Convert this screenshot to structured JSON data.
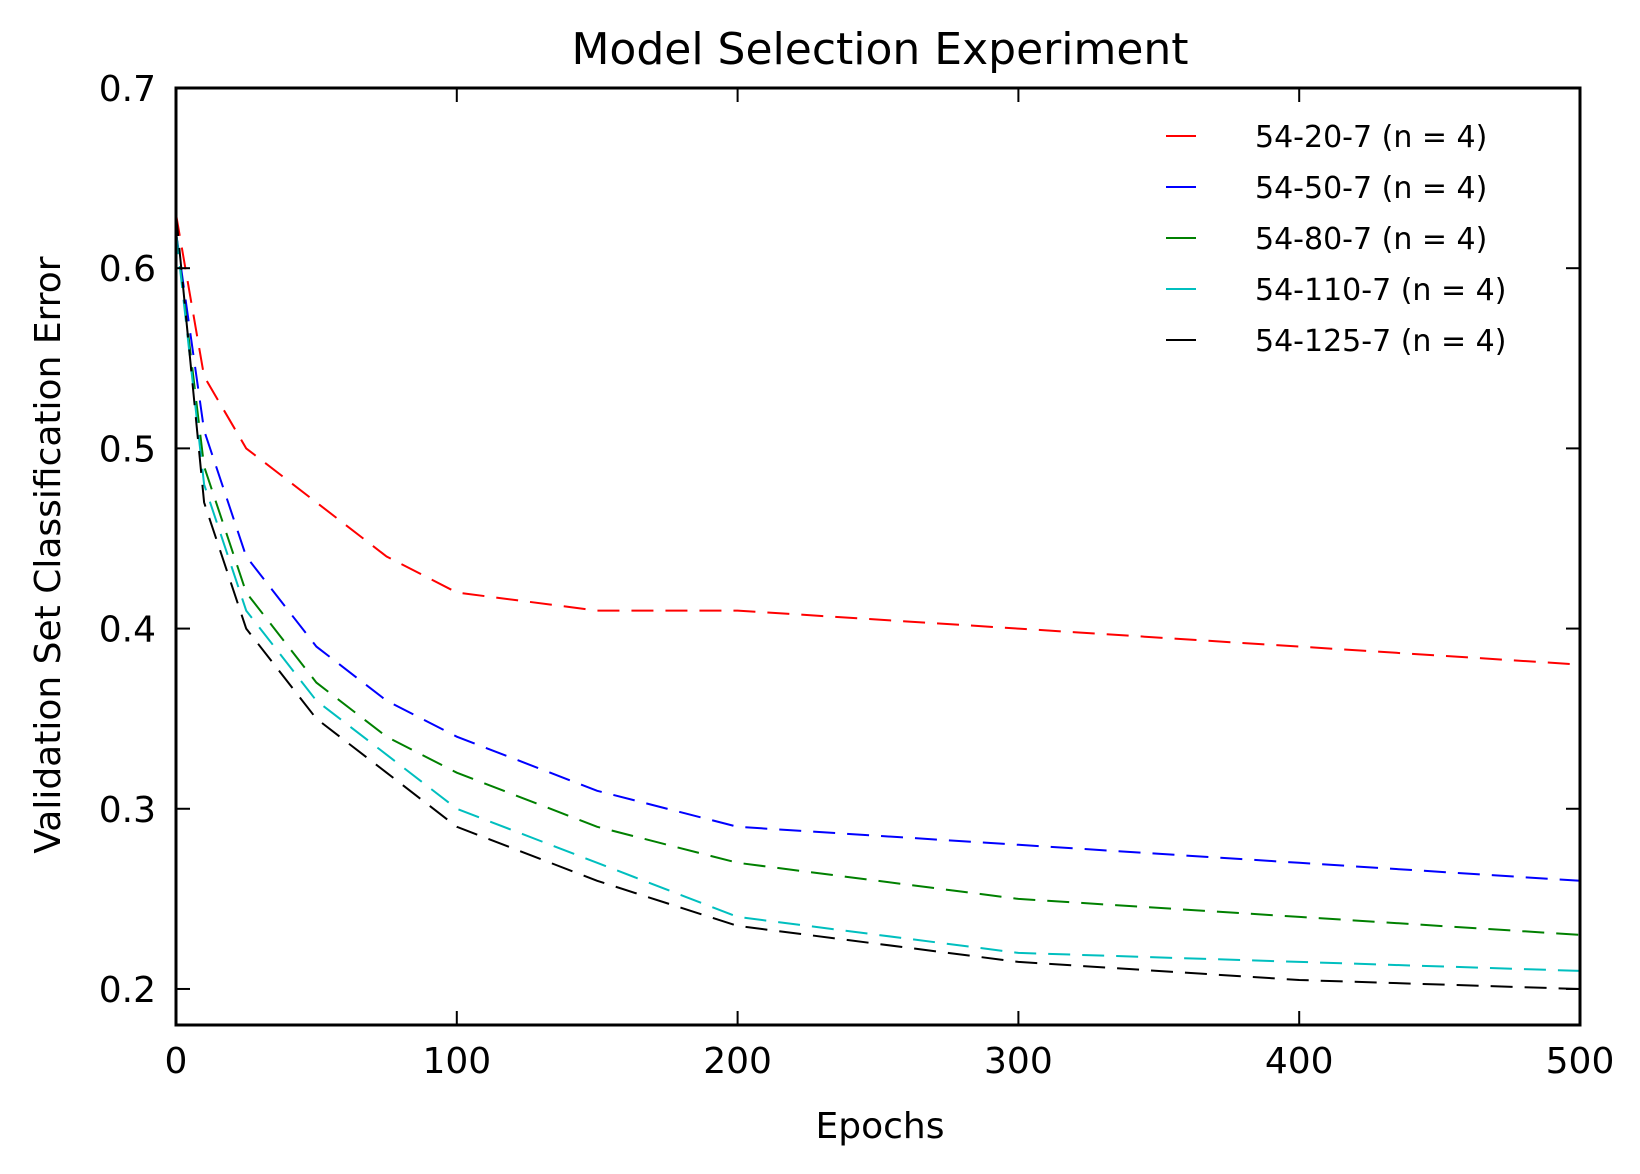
{
  "chart_data": {
    "type": "line",
    "title": "Model Selection Experiment",
    "xlabel": "Epochs",
    "ylabel": "Validation Set Classification Error",
    "xlim": [
      0,
      500
    ],
    "ylim": [
      0.18,
      0.7
    ],
    "xticks": [
      0,
      100,
      200,
      300,
      400,
      500
    ],
    "yticks": [
      0.2,
      0.3,
      0.4,
      0.5,
      0.6,
      0.7
    ],
    "xtick_labels": [
      "0",
      "100",
      "200",
      "300",
      "400",
      "500"
    ],
    "ytick_labels": [
      "0.2",
      "0.3",
      "0.4",
      "0.5",
      "0.6",
      "0.7"
    ],
    "grid": false,
    "legend": "top-right",
    "line_style": "dashed",
    "series": [
      {
        "name": "54-20-7 (n = 4)",
        "color": "#ff0000",
        "x": [
          0,
          10,
          25,
          50,
          75,
          100,
          150,
          200,
          300,
          400,
          500
        ],
        "y": [
          0.63,
          0.54,
          0.5,
          0.47,
          0.44,
          0.42,
          0.41,
          0.41,
          0.4,
          0.39,
          0.38
        ]
      },
      {
        "name": "54-50-7 (n = 4)",
        "color": "#0000ff",
        "x": [
          0,
          10,
          25,
          50,
          75,
          100,
          150,
          200,
          300,
          400,
          500
        ],
        "y": [
          0.62,
          0.51,
          0.44,
          0.39,
          0.36,
          0.34,
          0.31,
          0.29,
          0.28,
          0.27,
          0.26
        ]
      },
      {
        "name": "54-80-7 (n = 4)",
        "color": "#008000",
        "x": [
          0,
          10,
          25,
          50,
          75,
          100,
          150,
          200,
          300,
          400,
          500
        ],
        "y": [
          0.62,
          0.49,
          0.42,
          0.37,
          0.34,
          0.32,
          0.29,
          0.27,
          0.25,
          0.24,
          0.23
        ]
      },
      {
        "name": "54-110-7 (n = 4)",
        "color": "#00bfbf",
        "x": [
          0,
          10,
          25,
          50,
          75,
          100,
          150,
          200,
          300,
          400,
          500
        ],
        "y": [
          0.62,
          0.48,
          0.41,
          0.36,
          0.33,
          0.3,
          0.27,
          0.24,
          0.22,
          0.215,
          0.21
        ]
      },
      {
        "name": "54-125-7 (n = 4)",
        "color": "#000000",
        "x": [
          0,
          10,
          25,
          50,
          75,
          100,
          150,
          200,
          300,
          400,
          500
        ],
        "y": [
          0.63,
          0.47,
          0.4,
          0.35,
          0.32,
          0.29,
          0.26,
          0.235,
          0.215,
          0.205,
          0.2
        ]
      }
    ]
  }
}
